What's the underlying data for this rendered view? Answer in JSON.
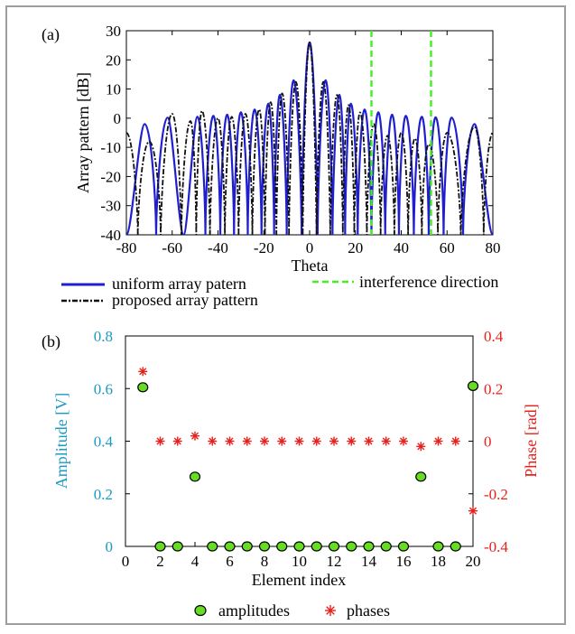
{
  "chart_data": [
    {
      "panel_label": "(a)",
      "type": "line",
      "xlabel": "Theta",
      "ylabel": "Array pattern [dB]",
      "xlim": [
        -80,
        80
      ],
      "ylim": [
        -40,
        30
      ],
      "xticks": [
        -80,
        -60,
        -40,
        -20,
        0,
        20,
        40,
        60,
        80
      ],
      "yticks": [
        -40,
        -30,
        -20,
        -10,
        0,
        10,
        20,
        30
      ],
      "legend": [
        "uniform array patern",
        "proposed array pattern",
        "interference direction"
      ],
      "colors": {
        "uniform": "#1f1fd0",
        "proposed": "#111111",
        "interference": "#44ee22"
      },
      "series": [
        {
          "name": "uniform array patern",
          "style": "solid",
          "x": [
            -80,
            -72,
            -62,
            -55,
            -49,
            -42,
            -36,
            -30,
            -24,
            -18,
            -13,
            -7,
            0,
            7,
            13,
            18,
            24,
            30,
            36,
            42,
            49,
            55,
            62,
            72,
            80
          ],
          "y": [
            -40,
            -2,
            0.2,
            -40,
            0.5,
            0.8,
            1.2,
            2,
            3,
            5,
            8,
            13,
            26,
            13,
            8,
            5,
            3,
            2,
            1.2,
            0.8,
            0.5,
            0.3,
            0.2,
            -2,
            -40
          ]
        },
        {
          "name": "proposed array pattern",
          "style": "dashdot",
          "x": [
            -80,
            -70,
            -60,
            -52,
            -47,
            -40,
            -34,
            -28,
            -22,
            -17,
            -12,
            -6,
            0,
            6,
            12,
            17,
            22,
            28,
            34,
            40,
            46,
            52,
            60,
            72,
            80
          ],
          "y": [
            -5,
            -8,
            1.5,
            -1,
            2.5,
            0,
            0.5,
            1.5,
            3,
            5.5,
            8.5,
            12.5,
            26,
            12.5,
            8,
            4.5,
            2,
            -2,
            -6,
            -5,
            -7,
            -9,
            -5,
            -3,
            -5
          ]
        }
      ],
      "interference_directions": [
        27,
        53
      ]
    },
    {
      "panel_label": "(b)",
      "type": "scatter",
      "xlabel": "Element index",
      "ylabel_left": "Amplitude [V]",
      "ylabel_right": "Phase [rad]",
      "xlim": [
        0,
        20
      ],
      "ylim_left": [
        0,
        0.8
      ],
      "ylim_right": [
        -0.4,
        0.4
      ],
      "xticks": [
        0,
        2,
        4,
        6,
        8,
        10,
        12,
        14,
        16,
        18,
        20
      ],
      "yticks_left": [
        0,
        0.2,
        0.4,
        0.6,
        0.8
      ],
      "yticks_left_labels": [
        "0",
        "0.2",
        "0.4",
        "0.6",
        "0.8"
      ],
      "yticks_right": [
        -0.4,
        -0.2,
        0,
        0.2,
        0.4
      ],
      "yticks_right_labels": [
        "-0.4",
        "-0.2",
        "0",
        "0.2",
        "0.4"
      ],
      "legend": [
        "amplitudes",
        "phases"
      ],
      "colors": {
        "left_axis": "#1b9ac4",
        "right_axis": "#e8201b",
        "amp_fill": "#66dd22",
        "phase": "#e8201b"
      },
      "series": [
        {
          "name": "amplitudes",
          "x": [
            1,
            2,
            3,
            4,
            5,
            6,
            7,
            8,
            9,
            10,
            11,
            12,
            13,
            14,
            15,
            16,
            17,
            18,
            19,
            20
          ],
          "y": [
            0.605,
            0,
            0,
            0.265,
            0,
            0,
            0,
            0,
            0,
            0,
            0,
            0,
            0,
            0,
            0,
            0,
            0.265,
            0,
            0,
            0.61
          ]
        },
        {
          "name": "phases",
          "x": [
            1,
            2,
            3,
            4,
            5,
            6,
            7,
            8,
            9,
            10,
            11,
            12,
            13,
            14,
            15,
            16,
            17,
            18,
            19,
            20
          ],
          "y": [
            0.265,
            0,
            0,
            0.02,
            0,
            0,
            0,
            0,
            0,
            0,
            0,
            0,
            0,
            0,
            0,
            0,
            -0.02,
            0,
            0,
            -0.265
          ]
        }
      ]
    }
  ]
}
